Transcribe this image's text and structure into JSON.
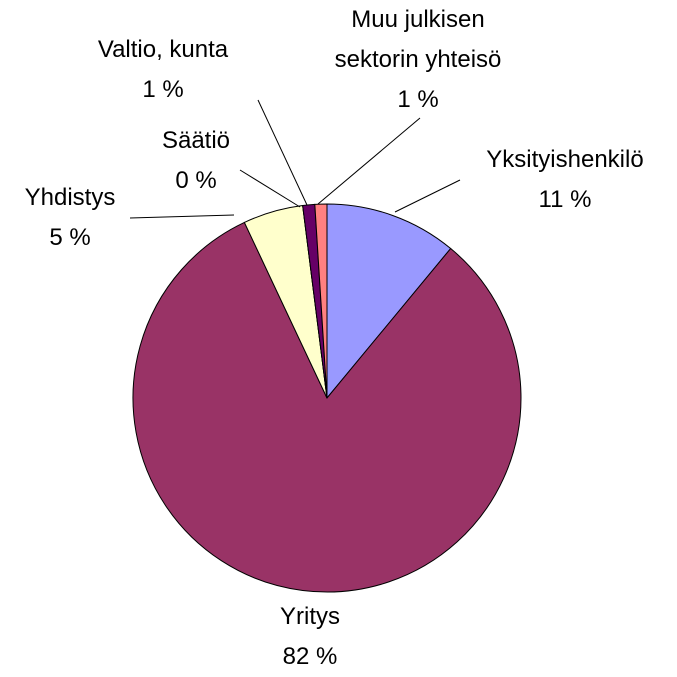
{
  "chart_data": {
    "type": "pie",
    "categories": [
      "Yksityishenkilö",
      "Yritys",
      "Yhdistys",
      "Säätiö",
      "Valtio, kunta",
      "Muu julkisen sektorin yhteisö"
    ],
    "values": [
      11,
      82,
      5,
      0,
      1,
      1
    ],
    "value_labels": [
      "11 %",
      "82 %",
      "5 %",
      "0 %",
      "1 %",
      "1 %"
    ],
    "colors": [
      "#9999ff",
      "#993366",
      "#ffffcc",
      "#ccffff",
      "#660066",
      "#ff8080"
    ]
  }
}
